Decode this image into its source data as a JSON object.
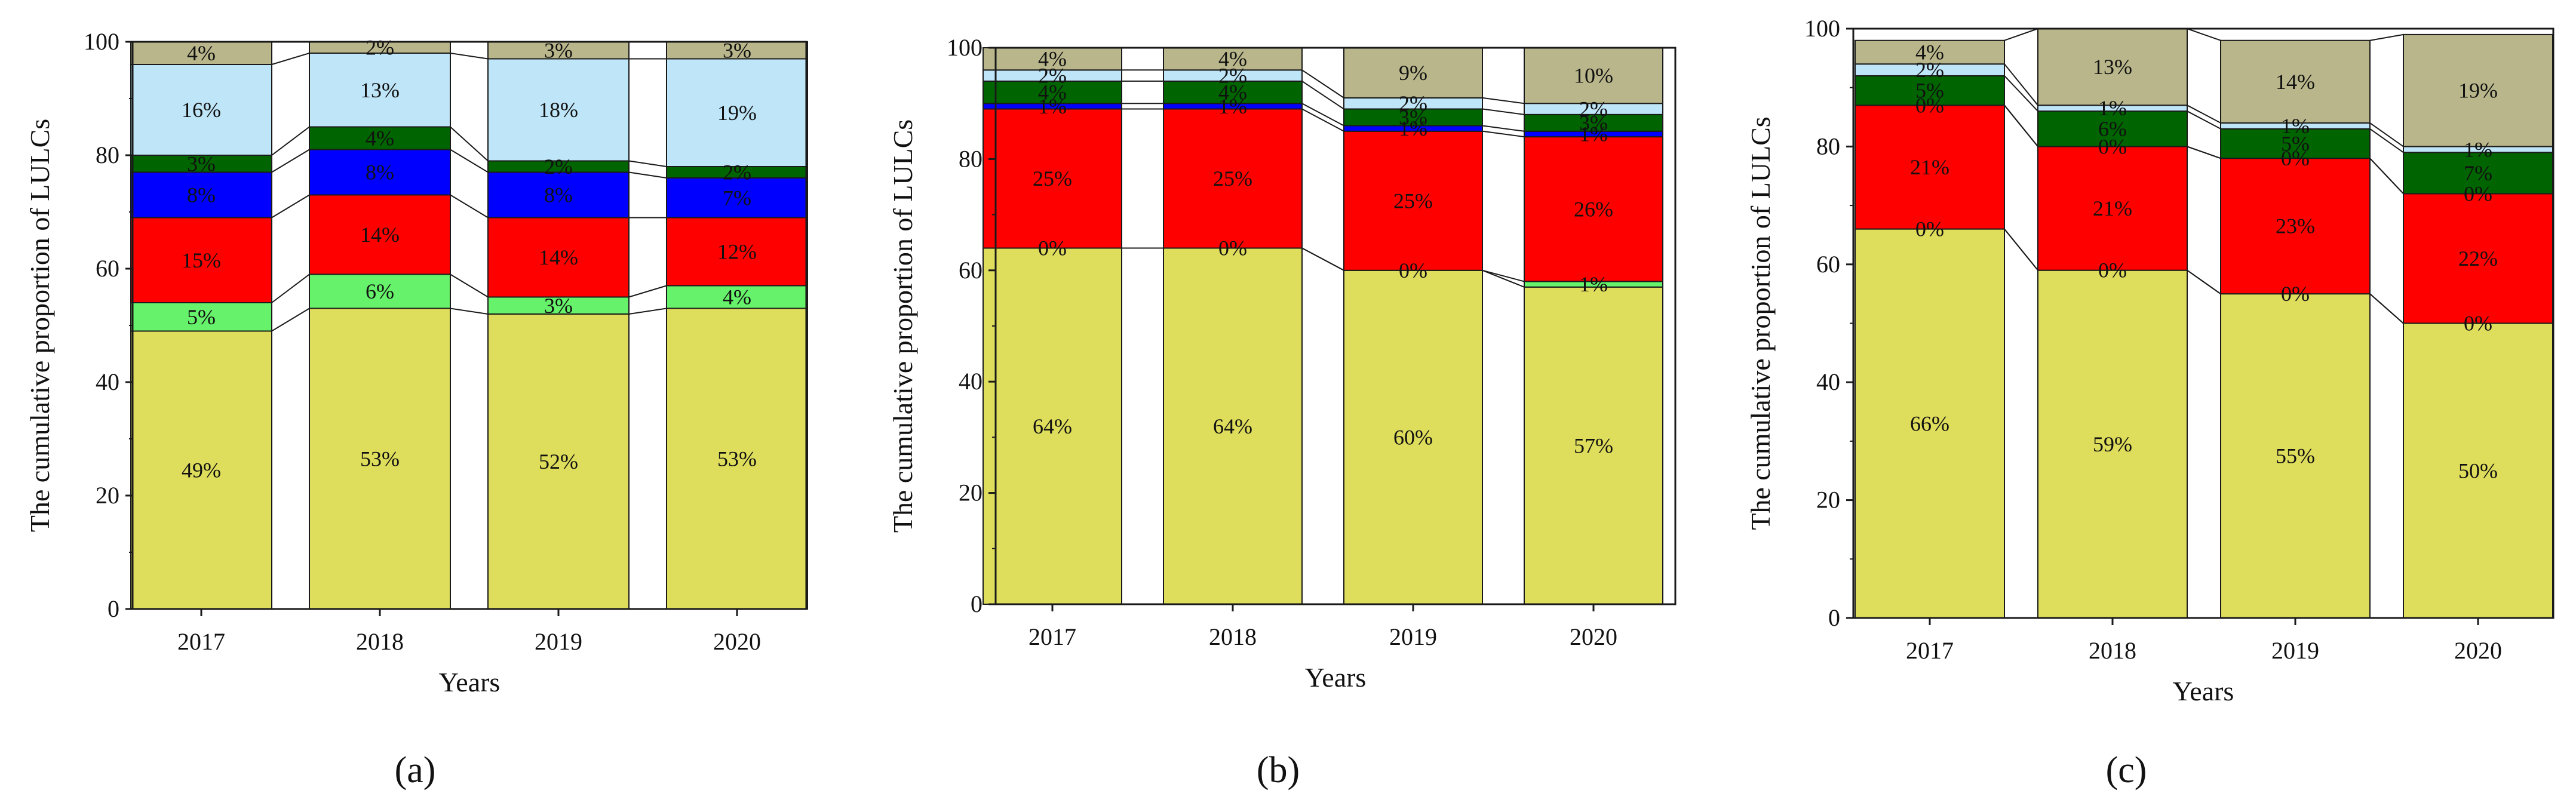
{
  "figure": {
    "colors": {
      "cat1": "#dedd5c",
      "cat2": "#66f26a",
      "cat3": "#ff0000",
      "cat4": "#0000ff",
      "cat5": "#006400",
      "cat6": "#bfe6f8",
      "cat7": "#b8b68a"
    }
  },
  "chart_data": [
    {
      "type": "bar",
      "stacked": true,
      "panel_label": "(a)",
      "xlabel": "Years",
      "ylabel": "The cumulative proportion of LULCs",
      "ylim": [
        0,
        100
      ],
      "yticks": [
        0,
        20,
        40,
        60,
        80,
        100
      ],
      "categories": [
        "2017",
        "2018",
        "2019",
        "2020"
      ],
      "series": [
        {
          "name": "cat1",
          "values": [
            49,
            53,
            52,
            53
          ],
          "labels": [
            "49%",
            "53%",
            "52%",
            "53%"
          ]
        },
        {
          "name": "cat2",
          "values": [
            5,
            6,
            3,
            4
          ],
          "labels": [
            "5%",
            "6%",
            "3%",
            "4%"
          ]
        },
        {
          "name": "cat3",
          "values": [
            15,
            14,
            14,
            12
          ],
          "labels": [
            "15%",
            "14%",
            "14%",
            "12%"
          ]
        },
        {
          "name": "cat4",
          "values": [
            8,
            8,
            8,
            7
          ],
          "labels": [
            "8%",
            "8%",
            "8%",
            "7%"
          ]
        },
        {
          "name": "cat5",
          "values": [
            3,
            4,
            2,
            2
          ],
          "labels": [
            "3%",
            "4%",
            "2%",
            "2%"
          ]
        },
        {
          "name": "cat6",
          "values": [
            16,
            13,
            18,
            19
          ],
          "labels": [
            "16%",
            "13%",
            "18%",
            "19%"
          ]
        },
        {
          "name": "cat7",
          "values": [
            4,
            2,
            3,
            3
          ],
          "labels": [
            "4%",
            "2%",
            "3%",
            "3%"
          ]
        }
      ]
    },
    {
      "type": "bar",
      "stacked": true,
      "panel_label": "(b)",
      "xlabel": "Years",
      "ylabel": "The cumulative proportion of LULCs",
      "ylim": [
        0,
        100
      ],
      "yticks": [
        0,
        20,
        40,
        60,
        80,
        100
      ],
      "categories": [
        "2017",
        "2018",
        "2019",
        "2020"
      ],
      "series": [
        {
          "name": "cat1",
          "values": [
            64,
            64,
            60,
            57
          ],
          "labels": [
            "64%",
            "64%",
            "60%",
            "57%"
          ]
        },
        {
          "name": "cat2",
          "values": [
            0,
            0,
            0,
            1
          ],
          "labels": [
            "0%",
            "0%",
            "0%",
            "1%"
          ]
        },
        {
          "name": "cat3",
          "values": [
            25,
            25,
            25,
            26
          ],
          "labels": [
            "25%",
            "25%",
            "25%",
            "26%"
          ]
        },
        {
          "name": "cat4",
          "values": [
            1,
            1,
            1,
            1
          ],
          "labels": [
            "1%",
            "1%",
            "1%",
            "1%"
          ]
        },
        {
          "name": "cat5",
          "values": [
            4,
            4,
            3,
            3
          ],
          "labels": [
            "4%",
            "4%",
            "3%",
            "3%"
          ]
        },
        {
          "name": "cat6",
          "values": [
            2,
            2,
            2,
            2
          ],
          "labels": [
            "2%",
            "2%",
            "2%",
            "2%"
          ]
        },
        {
          "name": "cat7",
          "values": [
            4,
            4,
            9,
            10
          ],
          "labels": [
            "4%",
            "4%",
            "9%",
            "10%"
          ]
        }
      ]
    },
    {
      "type": "bar",
      "stacked": true,
      "panel_label": "(c)",
      "xlabel": "Years",
      "ylabel": "The cumulative proportion of LULCs",
      "ylim": [
        0,
        100
      ],
      "yticks": [
        0,
        20,
        40,
        60,
        80,
        100
      ],
      "categories": [
        "2017",
        "2018",
        "2019",
        "2020"
      ],
      "series": [
        {
          "name": "cat1",
          "values": [
            66,
            59,
            55,
            50
          ],
          "labels": [
            "66%",
            "59%",
            "55%",
            "50%"
          ]
        },
        {
          "name": "cat2",
          "values": [
            0,
            0,
            0,
            0
          ],
          "labels": [
            "0%",
            "0%",
            "0%",
            "0%"
          ]
        },
        {
          "name": "cat3",
          "values": [
            21,
            21,
            23,
            22
          ],
          "labels": [
            "21%",
            "21%",
            "23%",
            "22%"
          ]
        },
        {
          "name": "cat4",
          "values": [
            0,
            0,
            0,
            0
          ],
          "labels": [
            "0%",
            "0%",
            "0%",
            "0%"
          ]
        },
        {
          "name": "cat5",
          "values": [
            5,
            6,
            5,
            7
          ],
          "labels": [
            "5%",
            "6%",
            "5%",
            "7%"
          ]
        },
        {
          "name": "cat6",
          "values": [
            2,
            1,
            1,
            1
          ],
          "labels": [
            "2%",
            "1%",
            "1%",
            "1%"
          ]
        },
        {
          "name": "cat7",
          "values": [
            4,
            13,
            14,
            19
          ],
          "labels": [
            "4%",
            "13%",
            "14%",
            "19%"
          ]
        }
      ]
    }
  ]
}
